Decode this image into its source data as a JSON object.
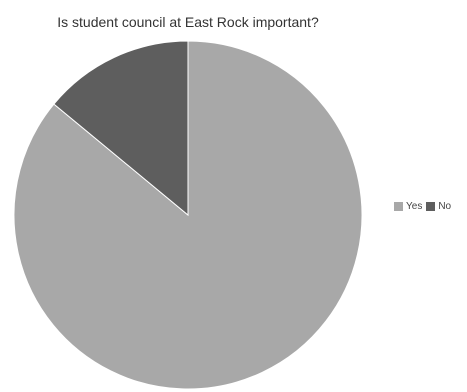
{
  "chart_data": {
    "type": "pie",
    "title": "Is student council at East Rock important?",
    "categories": [
      "Yes",
      "No"
    ],
    "values": [
      86,
      14
    ],
    "colors": [
      "#a8a8a8",
      "#5e5e5e"
    ],
    "legend_position": "right"
  }
}
